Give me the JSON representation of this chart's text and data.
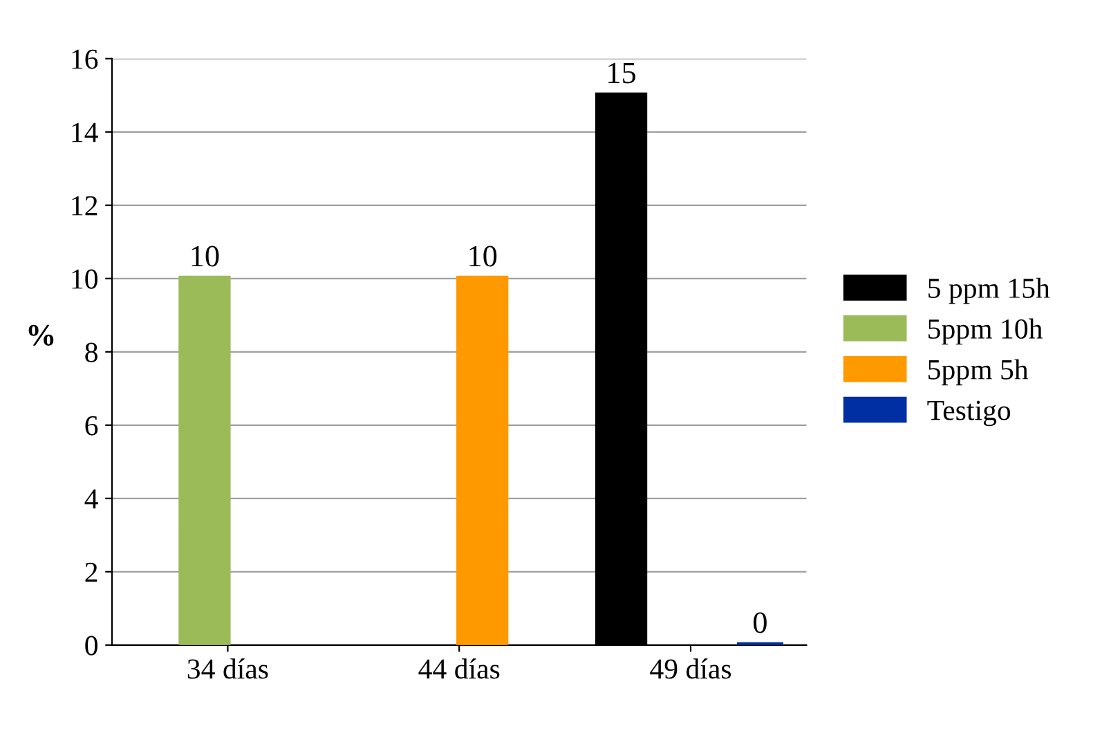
{
  "chart_data": {
    "type": "bar",
    "ylabel": "%",
    "categories": [
      "34 días",
      "44 días",
      "49 días"
    ],
    "series": [
      {
        "name": "5 ppm 15h",
        "color": "#000000",
        "values": [
          null,
          null,
          15
        ]
      },
      {
        "name": "5ppm 10h",
        "color": "#9bbb59",
        "values": [
          10,
          null,
          null
        ]
      },
      {
        "name": "5ppm 5h",
        "color": "#ff9900",
        "values": [
          null,
          10,
          null
        ]
      },
      {
        "name": "Testigo",
        "color": "#002ea3",
        "values": [
          null,
          null,
          0
        ]
      }
    ],
    "ylim": [
      0,
      16
    ],
    "yticks": [
      0,
      2,
      4,
      6,
      8,
      10,
      12,
      14,
      16
    ],
    "grid": "y",
    "legend": "right",
    "data_labels": true
  }
}
